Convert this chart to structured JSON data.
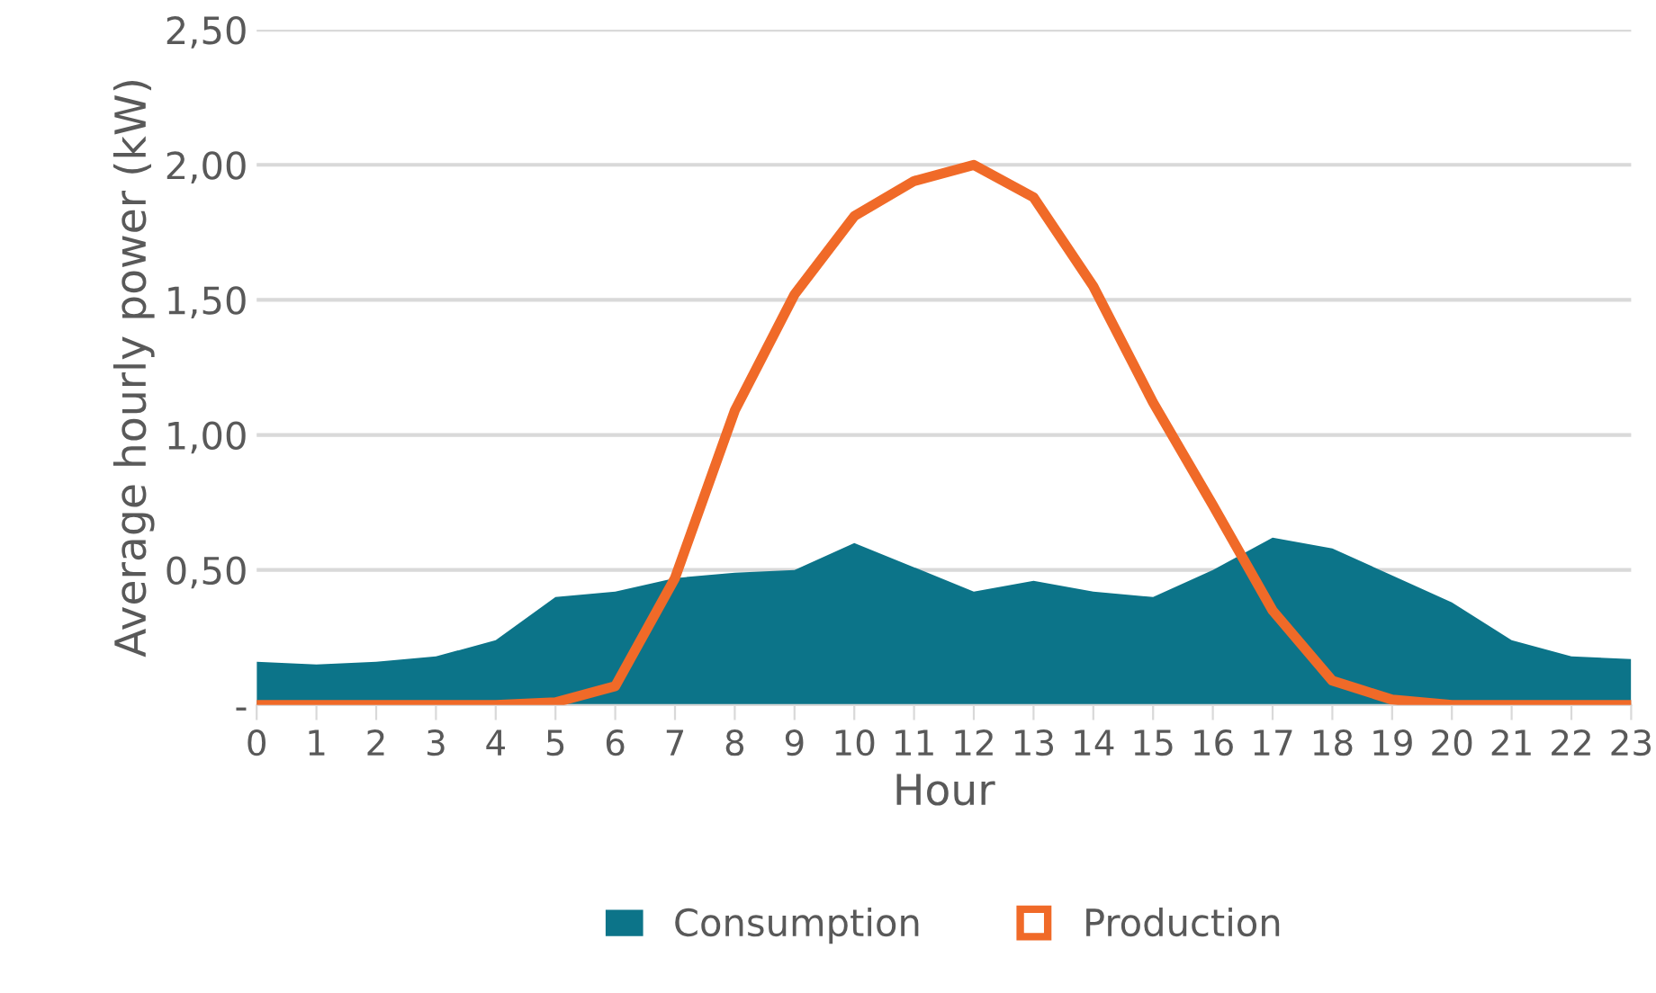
{
  "chart_data": {
    "type": "area",
    "xlabel": "Hour",
    "ylabel": "Average hourly power (kW)",
    "categories": [
      "0",
      "1",
      "2",
      "3",
      "4",
      "5",
      "6",
      "7",
      "8",
      "9",
      "10",
      "11",
      "12",
      "13",
      "14",
      "15",
      "16",
      "17",
      "18",
      "19",
      "20",
      "21",
      "22",
      "23"
    ],
    "series": [
      {
        "name": "Consumption",
        "color": "#0c7489",
        "values": [
          0.16,
          0.15,
          0.16,
          0.18,
          0.24,
          0.4,
          0.42,
          0.47,
          0.49,
          0.5,
          0.6,
          0.51,
          0.42,
          0.46,
          0.42,
          0.4,
          0.5,
          0.62,
          0.58,
          0.48,
          0.38,
          0.24,
          0.18,
          0.17
        ]
      },
      {
        "name": "Production",
        "type": "line",
        "color": "#f06a28",
        "values": [
          0,
          0,
          0,
          0,
          0,
          0.01,
          0.07,
          0.47,
          1.09,
          1.52,
          1.81,
          1.94,
          2.0,
          1.88,
          1.55,
          1.12,
          0.74,
          0.35,
          0.09,
          0.02,
          0,
          0,
          0,
          0
        ]
      }
    ],
    "ylim": [
      0,
      2.5
    ],
    "yticks": [
      {
        "value": 0,
        "label": "-"
      },
      {
        "value": 0.5,
        "label": "0,50"
      },
      {
        "value": 1.0,
        "label": "1,00"
      },
      {
        "value": 1.5,
        "label": "1,50"
      },
      {
        "value": 2.0,
        "label": "2,00"
      },
      {
        "value": 2.5,
        "label": "2,50"
      }
    ],
    "grid": "y",
    "legend": "bottom"
  }
}
